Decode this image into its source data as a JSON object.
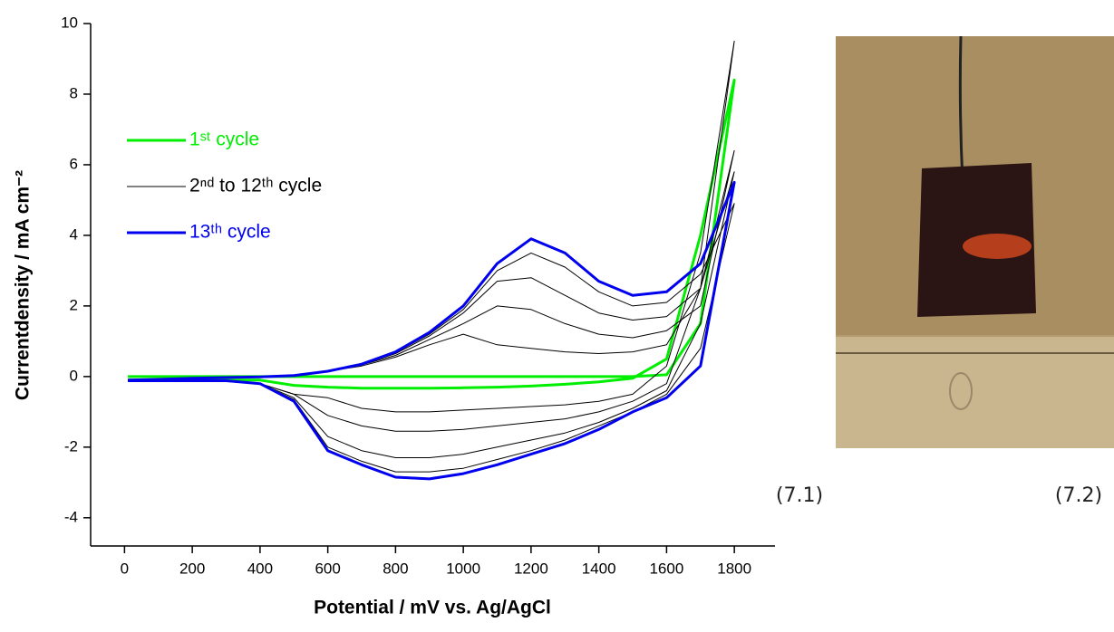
{
  "chart_data": {
    "type": "line",
    "x_label": "Potential / mV vs. Ag/AgCl",
    "y_label": "Currentdensity / mA cm⁻²",
    "x": [
      10,
      100,
      200,
      300,
      400,
      500,
      600,
      700,
      800,
      900,
      1000,
      1100,
      1200,
      1300,
      1400,
      1500,
      1600,
      1700,
      1800,
      1700,
      1600,
      1500,
      1400,
      1300,
      1200,
      1100,
      1000,
      900,
      800,
      700,
      600,
      500,
      400,
      300,
      200,
      100,
      10
    ],
    "series": [
      {
        "name": "1ˢᵗ cycle",
        "color": "#00ee00",
        "line_width": 3,
        "values": [
          0,
          0,
          0,
          0,
          0,
          0,
          0,
          0,
          0,
          0,
          0,
          0,
          0,
          0,
          0,
          0,
          0.05,
          1.5,
          8.4,
          4.0,
          0.5,
          -0.05,
          -0.15,
          -0.22,
          -0.27,
          -0.3,
          -0.32,
          -0.33,
          -0.33,
          -0.33,
          -0.3,
          -0.25,
          -0.1,
          -0.1,
          -0.1,
          -0.1,
          -0.1
        ]
      },
      {
        "name": "2ⁿᵈ to 12ᵗʰ cycle",
        "color": "#000000",
        "line_width": 1,
        "values": [
          -0.1,
          -0.08,
          -0.05,
          -0.03,
          -0.01,
          0.03,
          0.15,
          0.3,
          0.55,
          0.9,
          1.2,
          0.9,
          0.8,
          0.7,
          0.65,
          0.7,
          0.9,
          2.5,
          9.5,
          3.5,
          0.3,
          -0.5,
          -0.7,
          -0.8,
          -0.85,
          -0.9,
          -0.95,
          -1.0,
          -1.0,
          -0.9,
          -0.6,
          -0.5,
          -0.2,
          -0.12,
          -0.12,
          -0.12,
          -0.12
        ]
      },
      {
        "color": "#000000",
        "line_width": 1,
        "values": [
          -0.1,
          -0.08,
          -0.05,
          -0.03,
          -0.01,
          0.03,
          0.15,
          0.33,
          0.6,
          1.05,
          1.5,
          2.0,
          1.9,
          1.5,
          1.2,
          1.1,
          1.3,
          2.0,
          6.4,
          2.5,
          -0.2,
          -0.7,
          -1.0,
          -1.2,
          -1.3,
          -1.4,
          -1.5,
          -1.55,
          -1.55,
          -1.4,
          -1.1,
          -0.5,
          -0.2,
          -0.12,
          -0.12,
          -0.12,
          -0.12
        ]
      },
      {
        "color": "#000000",
        "line_width": 1,
        "values": [
          -0.1,
          -0.08,
          -0.05,
          -0.03,
          -0.01,
          0.03,
          0.15,
          0.34,
          0.65,
          1.15,
          1.8,
          2.7,
          2.8,
          2.3,
          1.8,
          1.6,
          1.7,
          2.5,
          5.8,
          1.5,
          -0.4,
          -0.9,
          -1.3,
          -1.6,
          -1.8,
          -2.0,
          -2.2,
          -2.3,
          -2.3,
          -2.1,
          -1.7,
          -0.6,
          -0.2,
          -0.12,
          -0.12,
          -0.12,
          -0.12
        ]
      },
      {
        "color": "#000000",
        "line_width": 1,
        "values": [
          -0.1,
          -0.08,
          -0.05,
          -0.03,
          -0.01,
          0.03,
          0.15,
          0.35,
          0.68,
          1.2,
          1.9,
          3.0,
          3.5,
          3.1,
          2.4,
          2.0,
          2.1,
          2.9,
          4.9,
          0.8,
          -0.5,
          -1.0,
          -1.4,
          -1.8,
          -2.1,
          -2.35,
          -2.6,
          -2.7,
          -2.7,
          -2.4,
          -2.0,
          -0.65,
          -0.2,
          -0.12,
          -0.12,
          -0.12,
          -0.12
        ]
      },
      {
        "name": "13ᵗʰ cycle",
        "color": "#0000ee",
        "line_width": 3,
        "values": [
          -0.1,
          -0.08,
          -0.05,
          -0.03,
          -0.01,
          0.03,
          0.15,
          0.35,
          0.7,
          1.25,
          2.0,
          3.2,
          3.9,
          3.5,
          2.7,
          2.3,
          2.4,
          3.2,
          5.5,
          0.3,
          -0.6,
          -1.0,
          -1.5,
          -1.9,
          -2.2,
          -2.5,
          -2.75,
          -2.9,
          -2.85,
          -2.5,
          -2.1,
          -0.7,
          -0.2,
          -0.12,
          -0.12,
          -0.12,
          -0.12
        ]
      }
    ],
    "xlim": [
      -100,
      1920
    ],
    "xticks": [
      0,
      200,
      400,
      600,
      800,
      1000,
      1200,
      1400,
      1600,
      1800
    ],
    "ylim": [
      -4.8,
      10
    ],
    "yticks": [
      -4,
      -2,
      0,
      2,
      4,
      6,
      8,
      10
    ]
  },
  "captions": [
    "(7.1)",
    "(7.2)"
  ]
}
